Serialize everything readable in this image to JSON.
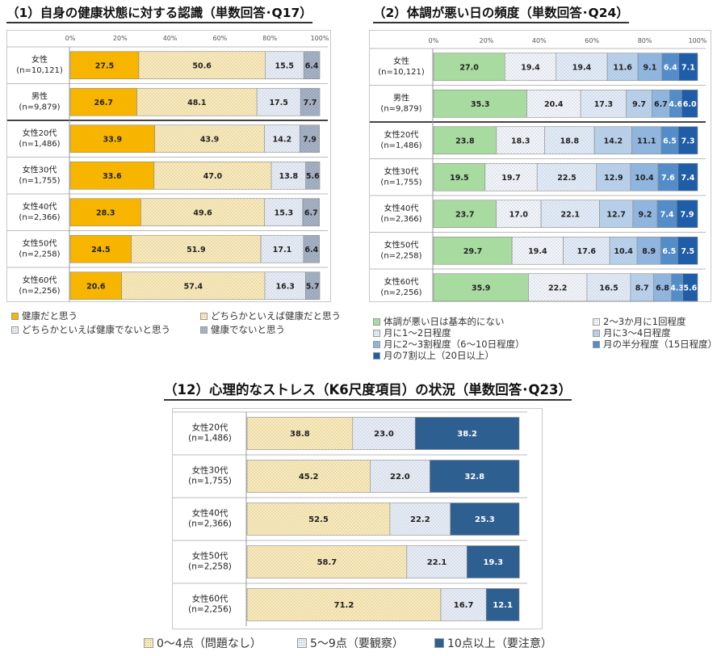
{
  "panel1": {
    "title": "（1）自身の健康状態に対する認識（単数回答･Q17）",
    "ticks": [
      "0%",
      "20%",
      "40%",
      "60%",
      "80%",
      "100%"
    ],
    "colors": [
      "#f7b500",
      "#fdebb6",
      "#e9eef6",
      "#a9b4c6"
    ],
    "patterns": [
      "solid",
      "dots-light",
      "dots-light",
      "dots-dark"
    ],
    "legend": [
      "健康だと思う",
      "どちらかといえば健康だと思う",
      "どちらかといえば健康でないと思う",
      "健康でないと思う"
    ]
  },
  "panel2": {
    "title": "（2）体調が悪い日の頻度（単数回答･Q24）",
    "ticks": [
      "0%",
      "20%",
      "40%",
      "60%",
      "80%",
      "100%"
    ],
    "colors": [
      "#a8dba0",
      "#f4f6fa",
      "#e4edf8",
      "#bcd4ee",
      "#92b9e2",
      "#4f8fd1",
      "#1f5da8"
    ],
    "patterns": [
      "solid",
      "dots-light",
      "dots-light",
      "dots-light",
      "dots-light",
      "dots-dark",
      "solid"
    ],
    "legend": [
      "体調が悪い日は基本的にない",
      "2～3か月に1回程度",
      "月に1～2日程度",
      "月に3～4日程度",
      "月に2～3割程度（6～10日程度）",
      "月の半分程度（15日程度）",
      "月の7割以上（20日以上）"
    ]
  },
  "panel3": {
    "title": "（12）心理的なストレス（K6尺度項目）の状況（単数回答･Q23）",
    "colors": [
      "#fdebb6",
      "#e9eef6",
      "#2e5f91"
    ],
    "patterns": [
      "dots-light",
      "dots-light",
      "solid"
    ],
    "legend": [
      "0～4点（問題なし）",
      "5～9点（要観察）",
      "10点以上（要注意）"
    ]
  },
  "chart_data": [
    {
      "type": "bar",
      "orientation": "horizontal-stacked-100",
      "title": "（1）自身の健康状態に対する認識（単数回答･Q17）",
      "categories": [
        [
          "女性",
          "(n=10,121)"
        ],
        [
          "男性",
          "(n=9,879)"
        ],
        [
          "女性20代",
          "(n=1,486)"
        ],
        [
          "女性30代",
          "(n=1,755)"
        ],
        [
          "女性40代",
          "(n=2,366)"
        ],
        [
          "女性50代",
          "(n=2,258)"
        ],
        [
          "女性60代",
          "(n=2,256)"
        ]
      ],
      "xlim": [
        0,
        100
      ],
      "series": [
        {
          "name": "健康だと思う",
          "values": [
            27.5,
            26.7,
            33.9,
            33.6,
            28.3,
            24.5,
            20.6
          ]
        },
        {
          "name": "どちらかといえば健康だと思う",
          "values": [
            50.6,
            48.1,
            43.9,
            47.0,
            49.6,
            51.9,
            57.4
          ]
        },
        {
          "name": "どちらかといえば健康でないと思う",
          "values": [
            15.5,
            17.5,
            14.2,
            13.8,
            15.3,
            17.1,
            16.3
          ]
        },
        {
          "name": "健康でないと思う",
          "values": [
            6.4,
            7.7,
            7.9,
            5.6,
            6.7,
            6.4,
            5.7
          ]
        }
      ]
    },
    {
      "type": "bar",
      "orientation": "horizontal-stacked-100",
      "title": "（2）体調が悪い日の頻度（単数回答･Q24）",
      "categories": [
        [
          "女性",
          "(n=10,121)"
        ],
        [
          "男性",
          "(n=9,879)"
        ],
        [
          "女性20代",
          "(n=1,486)"
        ],
        [
          "女性30代",
          "(n=1,755)"
        ],
        [
          "女性40代",
          "(n=2,366)"
        ],
        [
          "女性50代",
          "(n=2,258)"
        ],
        [
          "女性60代",
          "(n=2,256)"
        ]
      ],
      "xlim": [
        0,
        100
      ],
      "series": [
        {
          "name": "体調が悪い日は基本的にない",
          "values": [
            27.0,
            35.3,
            23.8,
            19.5,
            23.7,
            29.7,
            35.9
          ]
        },
        {
          "name": "2～3か月に1回程度",
          "values": [
            19.4,
            20.4,
            18.3,
            19.7,
            17.0,
            19.4,
            22.2
          ]
        },
        {
          "name": "月に1～2日程度",
          "values": [
            19.4,
            17.3,
            18.8,
            22.5,
            22.1,
            17.6,
            16.5
          ]
        },
        {
          "name": "月に3～4日程度",
          "values": [
            11.6,
            9.7,
            14.2,
            12.9,
            12.7,
            10.4,
            8.7
          ]
        },
        {
          "name": "月に2～3割程度（6～10日程度）",
          "values": [
            9.1,
            6.7,
            11.1,
            10.4,
            9.2,
            8.9,
            6.8
          ]
        },
        {
          "name": "月の半分程度（15日程度）",
          "values": [
            6.4,
            4.6,
            6.5,
            7.6,
            7.4,
            6.5,
            4.3
          ]
        },
        {
          "name": "月の7割以上（20日以上）",
          "values": [
            7.1,
            6.0,
            7.3,
            7.4,
            7.9,
            7.5,
            5.6
          ]
        }
      ]
    },
    {
      "type": "bar",
      "orientation": "horizontal-stacked-100",
      "title": "（12）心理的なストレス（K6尺度項目）の状況（単数回答･Q23）",
      "categories": [
        [
          "女性20代",
          "(n=1,486)"
        ],
        [
          "女性30代",
          "(n=1,755)"
        ],
        [
          "女性40代",
          "(n=2,366)"
        ],
        [
          "女性50代",
          "(n=2,258)"
        ],
        [
          "女性60代",
          "(n=2,256)"
        ]
      ],
      "xlim": [
        0,
        100
      ],
      "series": [
        {
          "name": "0～4点（問題なし）",
          "values": [
            38.8,
            45.2,
            52.5,
            58.7,
            71.2
          ]
        },
        {
          "name": "5～9点（要観察）",
          "values": [
            23.0,
            22.0,
            22.2,
            22.1,
            16.7
          ]
        },
        {
          "name": "10点以上（要注意）",
          "values": [
            38.2,
            32.8,
            25.3,
            19.3,
            12.1
          ]
        }
      ]
    }
  ]
}
